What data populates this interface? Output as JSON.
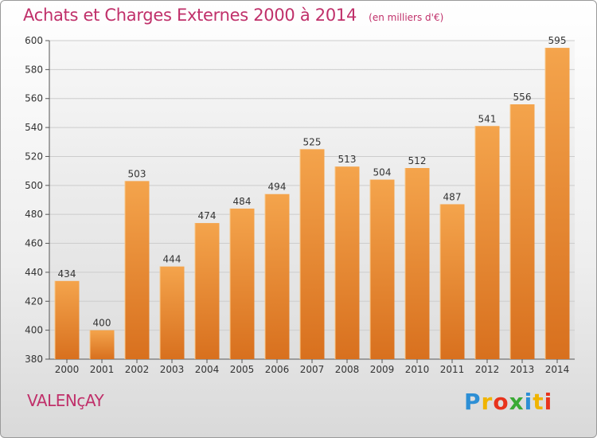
{
  "title": "Achats et Charges Externes 2000 à 2014",
  "subtitle": "(en milliers d'€)",
  "place": "VALENçAY",
  "logo": {
    "text": "Proxiti",
    "letters": [
      "P",
      "r",
      "o",
      "x",
      "i",
      "t",
      "i"
    ],
    "colors": [
      "#2d8fd5",
      "#f0b400",
      "#e8331c",
      "#3aaa35",
      "#2d8fd5",
      "#f0b400",
      "#e8331c"
    ]
  },
  "colors": {
    "bar_top": "#f4a44c",
    "bar_bottom": "#d8701e",
    "title": "#c0306a",
    "grid": "#cccccc"
  },
  "chart_data": {
    "type": "bar",
    "categories": [
      "2000",
      "2001",
      "2002",
      "2003",
      "2004",
      "2005",
      "2006",
      "2007",
      "2008",
      "2009",
      "2010",
      "2011",
      "2012",
      "2013",
      "2014"
    ],
    "values": [
      434,
      400,
      503,
      444,
      474,
      484,
      494,
      525,
      513,
      504,
      512,
      487,
      541,
      556,
      595
    ],
    "title": "Achats et Charges Externes 2000 à 2014",
    "subtitle": "(en milliers d'€)",
    "xlabel": "",
    "ylabel": "",
    "ylim": [
      380,
      600
    ],
    "yticks": [
      380,
      400,
      420,
      440,
      460,
      480,
      500,
      520,
      540,
      560,
      580,
      600
    ],
    "grid": true
  }
}
